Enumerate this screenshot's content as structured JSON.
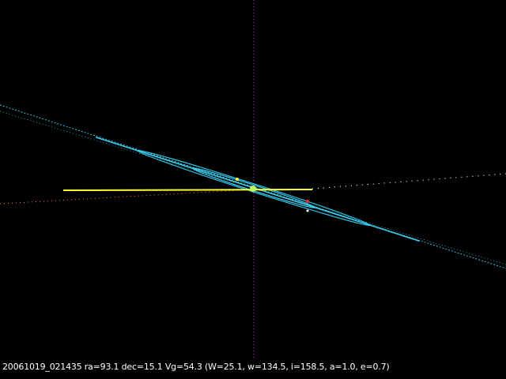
{
  "footer": {
    "caption": "20061019_021435 ra=93.1 dec=15.1 Vg=54.3 (W=25.1, w=134.5, i=158.5, a=1.0, e=0.7)"
  }
}
